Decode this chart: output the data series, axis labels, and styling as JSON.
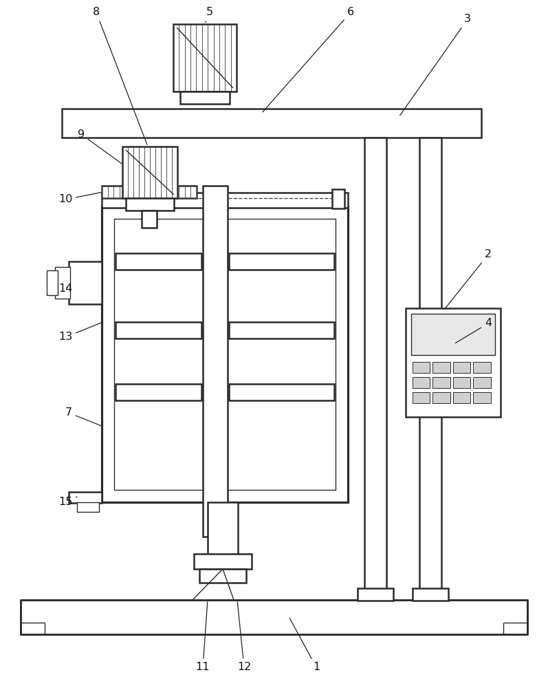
{
  "bg_color": "#ffffff",
  "lc": "#2a2a2a",
  "figsize": [
    7.97,
    10.0
  ],
  "dpi": 100
}
